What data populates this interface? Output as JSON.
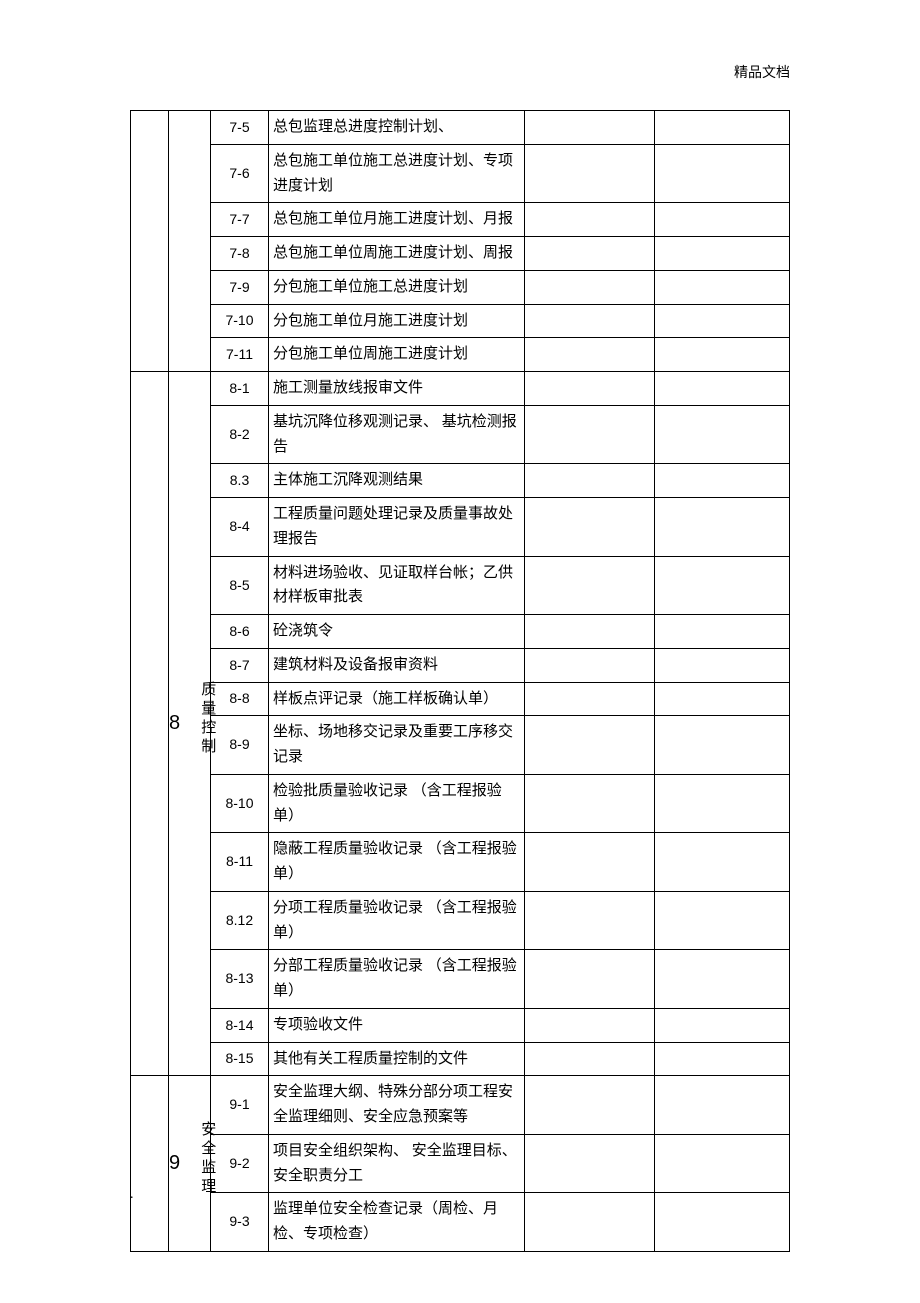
{
  "header": {
    "right_text": "精品文档"
  },
  "footer": {
    "dot": "."
  },
  "groups": [
    {
      "num": "",
      "cat": "",
      "rows": [
        {
          "code": "7-5",
          "desc": "总包监理总进度控制计划、"
        },
        {
          "code": "7-6",
          "desc": "总包施工单位施工总进度计划、专项进度计划"
        },
        {
          "code": "7-7",
          "desc": "总包施工单位月施工进度计划、月报"
        },
        {
          "code": "7-8",
          "desc": "总包施工单位周施工进度计划、周报"
        },
        {
          "code": "7-9",
          "desc": "分包施工单位施工总进度计划"
        },
        {
          "code": "7-10",
          "desc": "分包施工单位月施工进度计划"
        },
        {
          "code": "7-11",
          "desc": "分包施工单位周施工进度计划"
        }
      ]
    },
    {
      "num": "8",
      "cat": "质量控制",
      "rows": [
        {
          "code": "8-1",
          "desc": "施工测量放线报审文件"
        },
        {
          "code": "8-2",
          "desc": "基坑沉降位移观测记录、 基坑检测报告"
        },
        {
          "code": "8.3",
          "desc": "主体施工沉降观测结果"
        },
        {
          "code": "8-4",
          "desc": "工程质量问题处理记录及质量事故处理报告"
        },
        {
          "code": "8-5",
          "desc": "材料进场验收、见证取样台帐；乙供材样板审批表"
        },
        {
          "code": "8-6",
          "desc": "砼浇筑令"
        },
        {
          "code": "8-7",
          "desc": "建筑材料及设备报审资料"
        },
        {
          "code": "8-8",
          "desc": "样板点评记录（施工样板确认单）"
        },
        {
          "code": "8-9",
          "desc": "坐标、场地移交记录及重要工序移交记录"
        },
        {
          "code": "8-10",
          "desc": "检验批质量验收记录 （含工程报验单）"
        },
        {
          "code": "8-11",
          "desc": "隐蔽工程质量验收记录 （含工程报验单）"
        },
        {
          "code": "8.12",
          "desc": "分项工程质量验收记录 （含工程报验单）"
        },
        {
          "code": "8-13",
          "desc": "分部工程质量验收记录 （含工程报验单）"
        },
        {
          "code": "8-14",
          "desc": "专项验收文件"
        },
        {
          "code": "8-15",
          "desc": "其他有关工程质量控制的文件"
        }
      ]
    },
    {
      "num": "9",
      "cat": "安全监理",
      "rows": [
        {
          "code": "9-1",
          "desc": "安全监理大纲、特殊分部分项工程安全监理细则、安全应急预案等"
        },
        {
          "code": "9-2",
          "desc": "项目安全组织架构、 安全监理目标、安全职责分工"
        },
        {
          "code": "9-3",
          "desc": "监理单位安全检查记录（周检、月检、专项检查）"
        }
      ]
    }
  ]
}
